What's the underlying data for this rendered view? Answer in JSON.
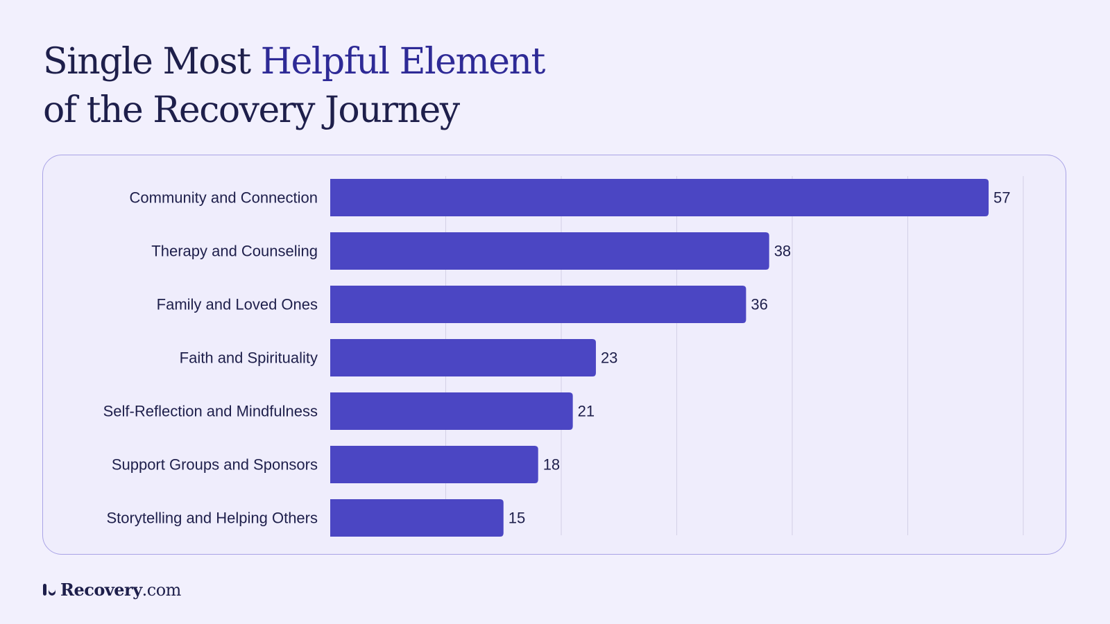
{
  "header": {
    "title_part1": "Single Most ",
    "title_accent": "Helpful Element",
    "title_line2": "of the Recovery Journey"
  },
  "footer": {
    "brand_name": "Recovery",
    "brand_suffix": ".com"
  },
  "colors": {
    "bar": "#4b46c3",
    "accent_text": "#2e2a96",
    "text": "#1e1f4b",
    "gridline": "#d3d0e6",
    "background": "#f2f0fd",
    "card_border": "#a9a3e6"
  },
  "chart_data": {
    "type": "bar",
    "orientation": "horizontal",
    "categories": [
      "Community and Connection",
      "Therapy and Counseling",
      "Family and Loved Ones",
      "Faith and Spirituality",
      "Self-Reflection and Mindfulness",
      "Support Groups and Sponsors",
      "Storytelling and Helping Others"
    ],
    "values": [
      57,
      38,
      36,
      23,
      21,
      18,
      15
    ],
    "title": "Single Most Helpful Element of the Recovery Journey",
    "xlabel": "",
    "ylabel": "",
    "xlim": [
      0,
      60
    ],
    "grid": true,
    "data_labels": true
  }
}
